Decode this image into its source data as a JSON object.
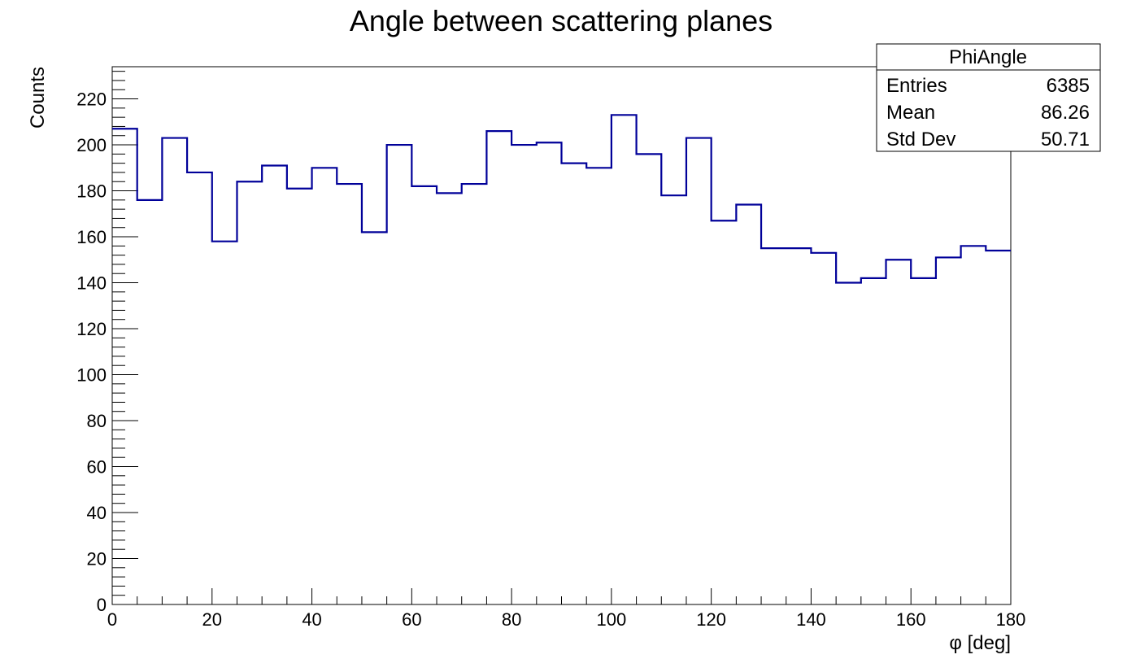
{
  "chart_data": {
    "type": "bar",
    "histogram": true,
    "title": "Angle between scattering planes",
    "xlabel": "φ [deg]",
    "ylabel": "Counts",
    "xlim": [
      0,
      180
    ],
    "ylim": [
      0,
      234
    ],
    "x_ticks": [
      0,
      20,
      40,
      60,
      80,
      100,
      120,
      140,
      160,
      180
    ],
    "y_ticks": [
      0,
      20,
      40,
      60,
      80,
      100,
      120,
      140,
      160,
      180,
      200,
      220
    ],
    "bin_width": 5,
    "bin_edges": [
      0,
      5,
      10,
      15,
      20,
      25,
      30,
      35,
      40,
      45,
      50,
      55,
      60,
      65,
      70,
      75,
      80,
      85,
      90,
      95,
      100,
      105,
      110,
      115,
      120,
      125,
      130,
      135,
      140,
      145,
      150,
      155,
      160,
      165,
      170,
      175,
      180
    ],
    "values": [
      207,
      176,
      203,
      188,
      158,
      184,
      191,
      181,
      190,
      183,
      162,
      200,
      182,
      179,
      183,
      206,
      200,
      201,
      192,
      190,
      213,
      196,
      178,
      203,
      167,
      174,
      155,
      155,
      153,
      140,
      142,
      150,
      142,
      151,
      156,
      154
    ],
    "line_color": "#000099",
    "grid": false,
    "legend": "none",
    "stats_box": {
      "placement": "top-right",
      "name": "PhiAngle",
      "rows": [
        {
          "label": "Entries",
          "value": "6385"
        },
        {
          "label": "Mean",
          "value": "86.26"
        },
        {
          "label": "Std Dev",
          "value": "50.71"
        }
      ]
    }
  }
}
